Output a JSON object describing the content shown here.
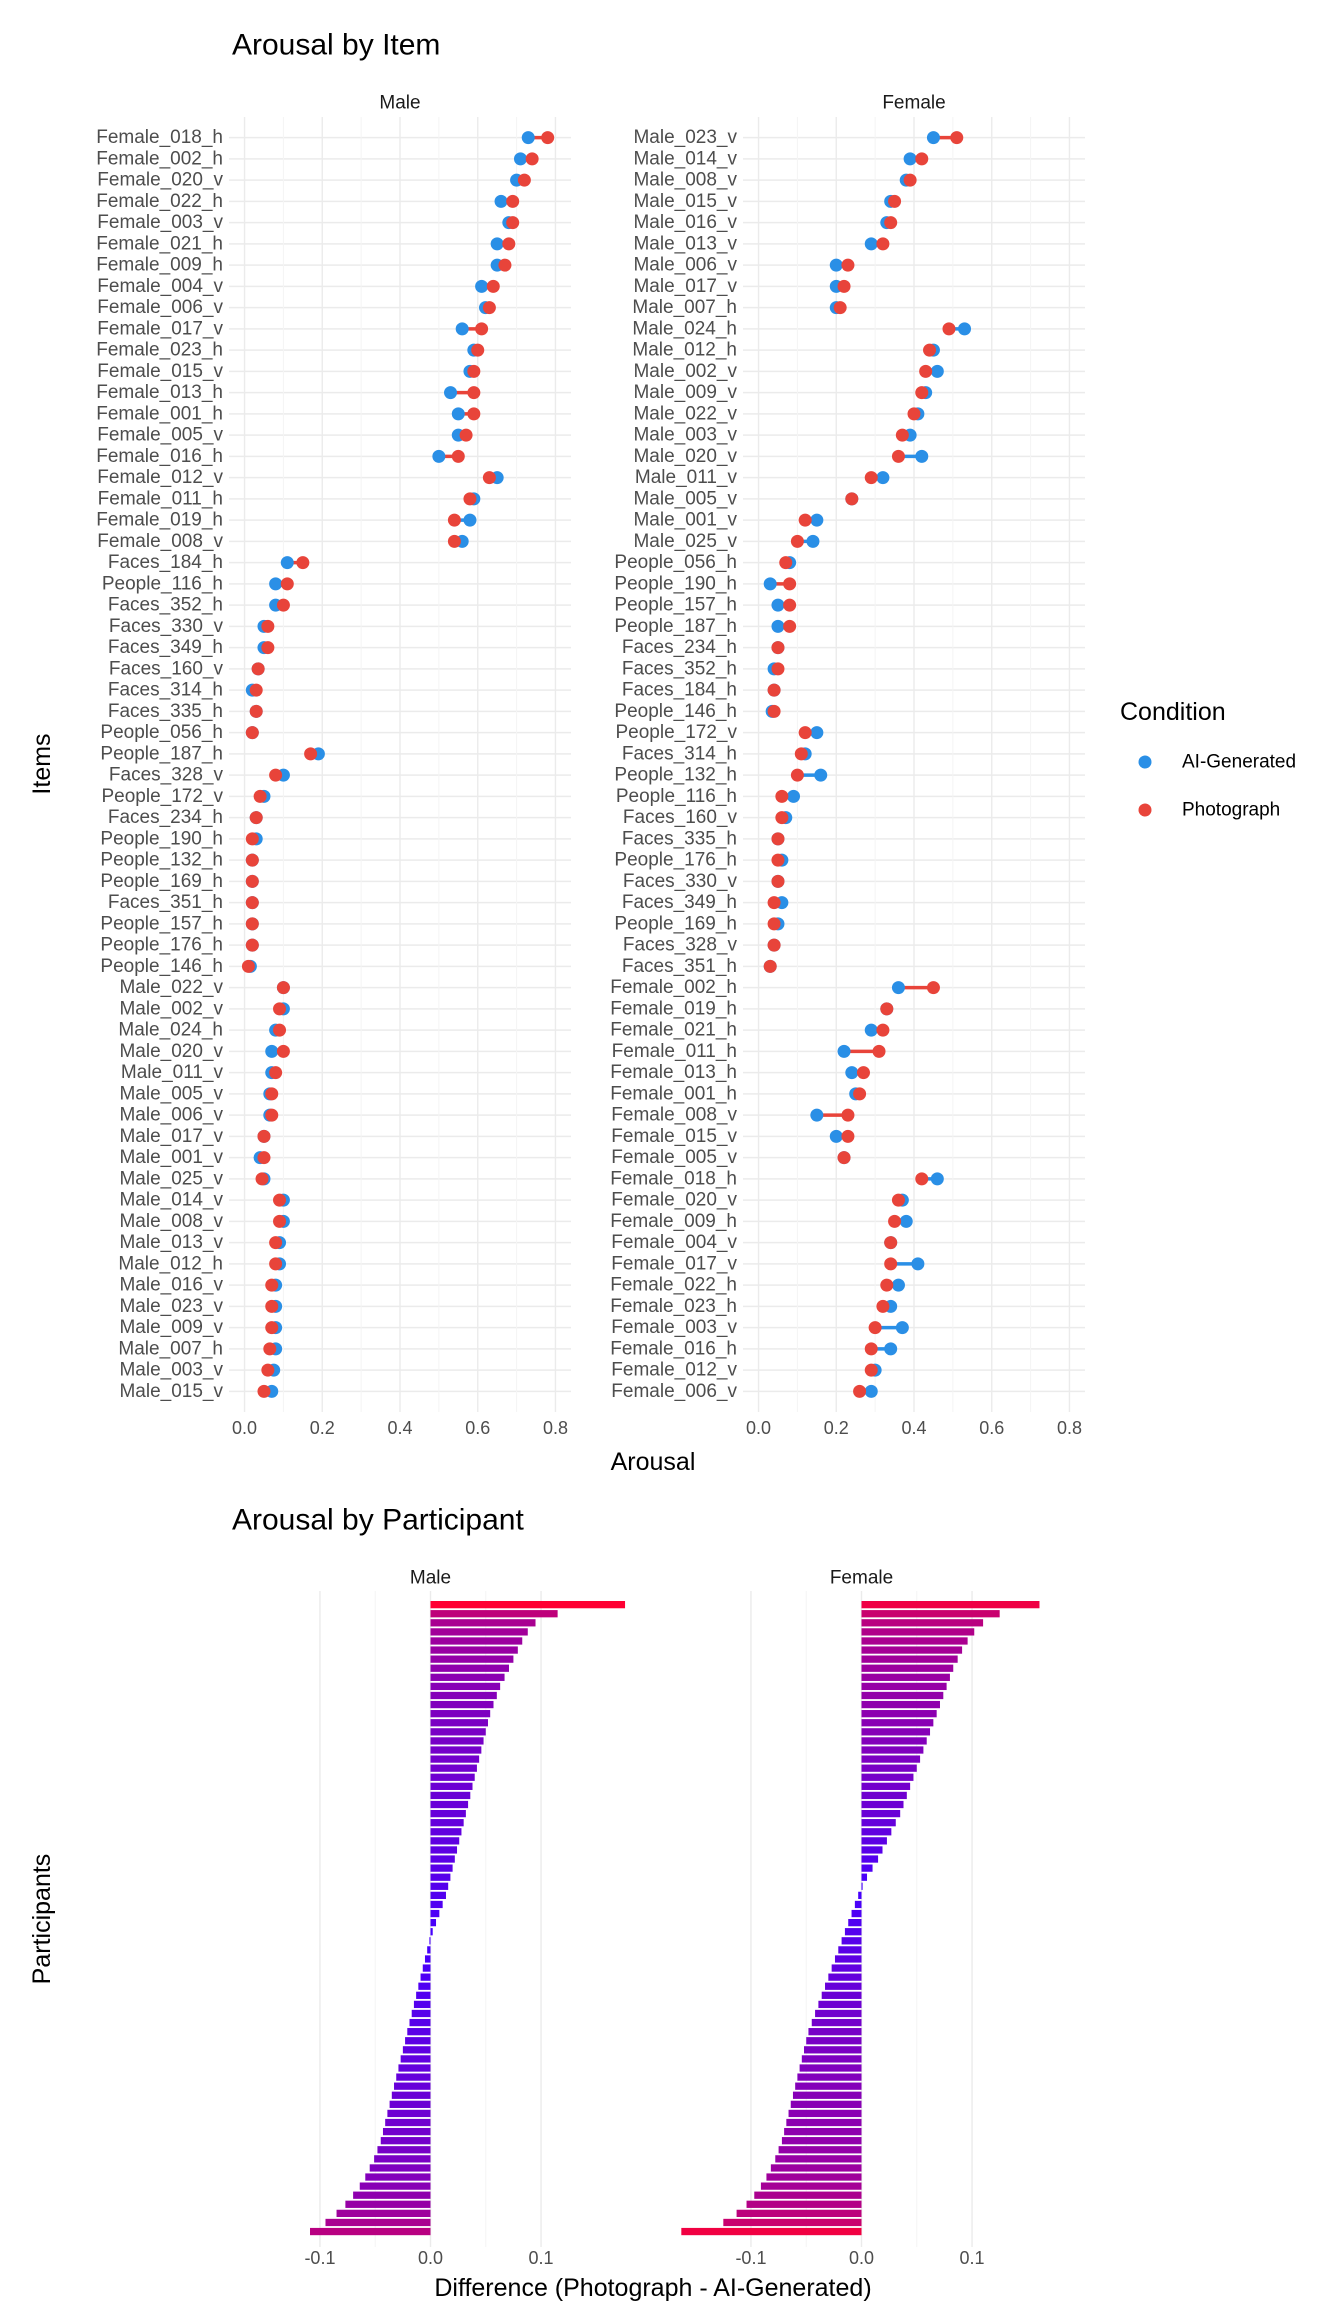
{
  "chart_data": [
    {
      "type": "dumbbell",
      "title": "Arousal by Item",
      "x_label": "Arousal",
      "y_label": "Items",
      "xlim": [
        -0.04,
        0.84
      ],
      "xticks": [
        {
          "value": 0,
          "label": "0.0"
        },
        0.2,
        0.4,
        0.6,
        0.8
      ],
      "grid": true,
      "legend": {
        "title": "Condition",
        "position": "right"
      },
      "series": [
        {
          "name": "AI-Generated",
          "color": "#2a8fe6"
        },
        {
          "name": "Photograph",
          "color": "#e8443a"
        }
      ],
      "facets": [
        {
          "name": "Male",
          "categories": [
            "Female_018_h",
            "Female_002_h",
            "Female_020_v",
            "Female_022_h",
            "Female_003_v",
            "Female_021_h",
            "Female_009_h",
            "Female_004_v",
            "Female_006_v",
            "Female_017_v",
            "Female_023_h",
            "Female_015_v",
            "Female_013_h",
            "Female_001_h",
            "Female_005_v",
            "Female_016_h",
            "Female_012_v",
            "Female_011_h",
            "Female_019_h",
            "Female_008_v",
            "Faces_184_h",
            "People_116_h",
            "Faces_352_h",
            "Faces_330_v",
            "Faces_349_h",
            "Faces_160_v",
            "Faces_314_h",
            "Faces_335_h",
            "People_056_h",
            "People_187_h",
            "Faces_328_v",
            "People_172_v",
            "Faces_234_h",
            "People_190_h",
            "People_132_h",
            "People_169_h",
            "Faces_351_h",
            "People_157_h",
            "People_176_h",
            "People_146_h",
            "Male_022_v",
            "Male_002_v",
            "Male_024_h",
            "Male_020_v",
            "Male_011_v",
            "Male_005_v",
            "Male_006_v",
            "Male_017_v",
            "Male_001_v",
            "Male_025_v",
            "Male_014_v",
            "Male_008_v",
            "Male_013_v",
            "Male_012_h",
            "Male_016_v",
            "Male_023_v",
            "Male_009_v",
            "Male_007_h",
            "Male_003_v",
            "Male_015_v"
          ],
          "series": [
            {
              "values": [
                0.73,
                0.71,
                0.7,
                0.66,
                0.68,
                0.65,
                0.65,
                0.61,
                0.62,
                0.56,
                0.59,
                0.58,
                0.53,
                0.55,
                0.55,
                0.5,
                0.65,
                0.59,
                0.58,
                0.56,
                0.11,
                0.08,
                0.08,
                0.05,
                0.05,
                0.035,
                0.02,
                0.03,
                0.02,
                0.19,
                0.1,
                0.05,
                0.03,
                0.03,
                0.02,
                0.02,
                0.02,
                0.02,
                0.02,
                0.015,
                0.1,
                0.1,
                0.08,
                0.07,
                0.07,
                0.065,
                0.065,
                0.05,
                0.04,
                0.05,
                0.1,
                0.1,
                0.09,
                0.09,
                0.08,
                0.08,
                0.08,
                0.08,
                0.075,
                0.07
              ]
            },
            {
              "values": [
                0.78,
                0.74,
                0.72,
                0.69,
                0.69,
                0.68,
                0.67,
                0.64,
                0.63,
                0.61,
                0.6,
                0.59,
                0.59,
                0.59,
                0.57,
                0.55,
                0.63,
                0.58,
                0.54,
                0.54,
                0.15,
                0.11,
                0.1,
                0.06,
                0.06,
                0.035,
                0.03,
                0.03,
                0.02,
                0.17,
                0.08,
                0.04,
                0.03,
                0.02,
                0.02,
                0.02,
                0.02,
                0.02,
                0.02,
                0.01,
                0.1,
                0.09,
                0.09,
                0.1,
                0.08,
                0.07,
                0.07,
                0.05,
                0.05,
                0.045,
                0.09,
                0.09,
                0.08,
                0.08,
                0.07,
                0.07,
                0.07,
                0.065,
                0.06,
                0.05
              ]
            }
          ]
        },
        {
          "name": "Female",
          "categories": [
            "Male_023_v",
            "Male_014_v",
            "Male_008_v",
            "Male_015_v",
            "Male_016_v",
            "Male_013_v",
            "Male_006_v",
            "Male_017_v",
            "Male_007_h",
            "Male_024_h",
            "Male_012_h",
            "Male_002_v",
            "Male_009_v",
            "Male_022_v",
            "Male_003_v",
            "Male_020_v",
            "Male_011_v",
            "Male_005_v",
            "Male_001_v",
            "Male_025_v",
            "People_056_h",
            "People_190_h",
            "People_157_h",
            "People_187_h",
            "Faces_234_h",
            "Faces_352_h",
            "Faces_184_h",
            "People_146_h",
            "People_172_v",
            "Faces_314_h",
            "People_132_h",
            "People_116_h",
            "Faces_160_v",
            "Faces_335_h",
            "People_176_h",
            "Faces_330_v",
            "Faces_349_h",
            "People_169_h",
            "Faces_328_v",
            "Faces_351_h",
            "Female_002_h",
            "Female_019_h",
            "Female_021_h",
            "Female_011_h",
            "Female_013_h",
            "Female_001_h",
            "Female_008_v",
            "Female_015_v",
            "Female_005_v",
            "Female_018_h",
            "Female_020_v",
            "Female_009_h",
            "Female_004_v",
            "Female_017_v",
            "Female_022_h",
            "Female_023_h",
            "Female_003_v",
            "Female_016_h",
            "Female_012_v",
            "Female_006_v"
          ],
          "series": [
            {
              "values": [
                0.45,
                0.39,
                0.38,
                0.34,
                0.33,
                0.29,
                0.2,
                0.2,
                0.2,
                0.53,
                0.45,
                0.46,
                0.43,
                0.41,
                0.39,
                0.42,
                0.32,
                0.24,
                0.15,
                0.14,
                0.08,
                0.03,
                0.05,
                0.05,
                0.05,
                0.04,
                0.04,
                0.035,
                0.15,
                0.12,
                0.16,
                0.09,
                0.07,
                0.05,
                0.06,
                0.05,
                0.06,
                0.05,
                0.04,
                0.03,
                0.36,
                0.33,
                0.29,
                0.22,
                0.24,
                0.25,
                0.15,
                0.2,
                0.22,
                0.46,
                0.37,
                0.38,
                0.34,
                0.41,
                0.36,
                0.34,
                0.37,
                0.34,
                0.3,
                0.29
              ]
            },
            {
              "values": [
                0.51,
                0.42,
                0.39,
                0.35,
                0.34,
                0.32,
                0.23,
                0.22,
                0.21,
                0.49,
                0.44,
                0.43,
                0.42,
                0.4,
                0.37,
                0.36,
                0.29,
                0.24,
                0.12,
                0.1,
                0.07,
                0.08,
                0.08,
                0.08,
                0.05,
                0.05,
                0.04,
                0.04,
                0.12,
                0.11,
                0.1,
                0.06,
                0.06,
                0.05,
                0.05,
                0.05,
                0.04,
                0.04,
                0.04,
                0.03,
                0.45,
                0.33,
                0.32,
                0.31,
                0.27,
                0.26,
                0.23,
                0.23,
                0.22,
                0.42,
                0.36,
                0.35,
                0.34,
                0.34,
                0.33,
                0.32,
                0.3,
                0.29,
                0.29,
                0.26
              ]
            }
          ]
        }
      ]
    },
    {
      "type": "diverging-bar",
      "title": "Arousal by Participant",
      "x_label": "Difference (Photograph - AI-Generated)",
      "y_label": "Participants",
      "xlim": [
        -0.185,
        0.185
      ],
      "xticks": [
        -0.1,
        {
          "value": 0,
          "label": "0.0"
        },
        0.1
      ],
      "grid": true,
      "color_low": "#4400ff",
      "color_high": "#ff0033",
      "facets": [
        {
          "name": "Male",
          "values": [
            0.176,
            0.115,
            0.095,
            0.088,
            0.083,
            0.079,
            0.075,
            0.071,
            0.067,
            0.063,
            0.06,
            0.057,
            0.054,
            0.052,
            0.05,
            0.048,
            0.046,
            0.044,
            0.042,
            0.04,
            0.038,
            0.036,
            0.034,
            0.032,
            0.03,
            0.028,
            0.026,
            0.024,
            0.022,
            0.02,
            0.018,
            0.016,
            0.014,
            0.011,
            0.008,
            0.005,
            0.002,
            -0.001,
            -0.003,
            -0.005,
            -0.007,
            -0.009,
            -0.011,
            -0.013,
            -0.015,
            -0.017,
            -0.019,
            -0.021,
            -0.023,
            -0.025,
            -0.027,
            -0.029,
            -0.031,
            -0.033,
            -0.035,
            -0.037,
            -0.039,
            -0.041,
            -0.043,
            -0.045,
            -0.048,
            -0.051,
            -0.055,
            -0.059,
            -0.064,
            -0.07,
            -0.077,
            -0.085,
            -0.095,
            -0.109
          ]
        },
        {
          "name": "Female",
          "values": [
            0.161,
            0.125,
            0.11,
            0.102,
            0.096,
            0.091,
            0.087,
            0.083,
            0.08,
            0.077,
            0.074,
            0.071,
            0.068,
            0.065,
            0.062,
            0.059,
            0.056,
            0.053,
            0.05,
            0.047,
            0.044,
            0.041,
            0.038,
            0.035,
            0.031,
            0.027,
            0.023,
            0.019,
            0.015,
            0.01,
            0.005,
            0.001,
            -0.003,
            -0.006,
            -0.009,
            -0.012,
            -0.015,
            -0.018,
            -0.021,
            -0.024,
            -0.027,
            -0.03,
            -0.033,
            -0.036,
            -0.039,
            -0.042,
            -0.045,
            -0.048,
            -0.05,
            -0.052,
            -0.054,
            -0.056,
            -0.058,
            -0.06,
            -0.062,
            -0.064,
            -0.066,
            -0.068,
            -0.07,
            -0.072,
            -0.075,
            -0.078,
            -0.082,
            -0.086,
            -0.091,
            -0.097,
            -0.104,
            -0.113,
            -0.125,
            -0.163
          ]
        }
      ]
    }
  ]
}
